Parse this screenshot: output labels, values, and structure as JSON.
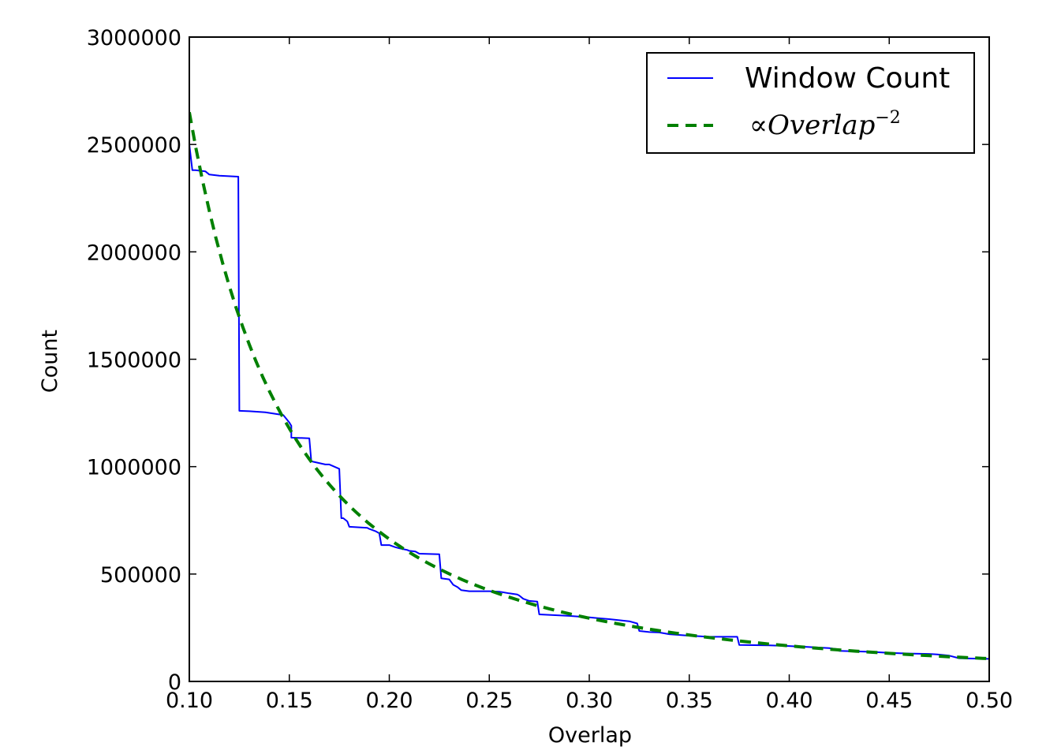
{
  "chart_data": {
    "type": "line",
    "xlabel": "Overlap",
    "ylabel": "Count",
    "xlim": [
      0.1,
      0.5
    ],
    "ylim": [
      0,
      3000000
    ],
    "xticks": [
      0.1,
      0.15,
      0.2,
      0.25,
      0.3,
      0.35,
      0.4,
      0.45,
      0.5
    ],
    "xtick_labels": [
      "0.10",
      "0.15",
      "0.20",
      "0.25",
      "0.30",
      "0.35",
      "0.40",
      "0.45",
      "0.50"
    ],
    "yticks": [
      0,
      500000,
      1000000,
      1500000,
      2000000,
      2500000,
      3000000
    ],
    "ytick_labels": [
      "0",
      "500000",
      "1000000",
      "1500000",
      "2000000",
      "2500000",
      "3000000"
    ],
    "grid": false,
    "legend_position": "top-right",
    "series": [
      {
        "name": "Window Count",
        "color": "#0000ff",
        "style": "solid",
        "x": [
          0.1,
          0.1015,
          0.103,
          0.108,
          0.11,
          0.115,
          0.1245,
          0.125,
          0.13,
          0.138,
          0.147,
          0.15,
          0.151,
          0.151,
          0.16,
          0.161,
          0.168,
          0.17,
          0.175,
          0.176,
          0.177,
          0.179,
          0.18,
          0.189,
          0.19,
          0.193,
          0.195,
          0.196,
          0.2,
          0.203,
          0.205,
          0.209,
          0.21,
          0.213,
          0.215,
          0.225,
          0.226,
          0.23,
          0.232,
          0.234,
          0.236,
          0.24,
          0.25,
          0.255,
          0.26,
          0.264,
          0.265,
          0.267,
          0.27,
          0.274,
          0.275,
          0.28,
          0.29,
          0.3,
          0.31,
          0.32,
          0.324,
          0.325,
          0.33,
          0.335,
          0.34,
          0.35,
          0.36,
          0.374,
          0.375,
          0.39,
          0.4,
          0.41,
          0.42,
          0.424,
          0.425,
          0.44,
          0.45,
          0.46,
          0.47,
          0.474,
          0.48,
          0.485,
          0.5
        ],
        "y": [
          2500000,
          2380000,
          2380000,
          2375000,
          2360000,
          2355000,
          2350000,
          1260000,
          1258000,
          1253000,
          1240000,
          1205000,
          1190000,
          1135000,
          1132000,
          1025000,
          1010000,
          1010000,
          990000,
          760000,
          760000,
          745000,
          720000,
          715000,
          710000,
          700000,
          690000,
          635000,
          635000,
          625000,
          620000,
          612000,
          608000,
          605000,
          595000,
          592000,
          480000,
          475000,
          450000,
          440000,
          425000,
          420000,
          420000,
          418000,
          410000,
          405000,
          400000,
          385000,
          375000,
          372000,
          312000,
          310000,
          305000,
          298000,
          290000,
          280000,
          270000,
          235000,
          230000,
          228000,
          220000,
          213000,
          208000,
          208000,
          170000,
          168000,
          165000,
          160000,
          155000,
          150000,
          142000,
          138000,
          133000,
          130000,
          128000,
          126000,
          120000,
          108000,
          105000
        ]
      },
      {
        "name": "∝Overlap",
        "name_superscript": "−2",
        "color": "#008000",
        "style": "dashed",
        "function": "k / x^2",
        "k": 26500,
        "samples": 120
      }
    ]
  }
}
